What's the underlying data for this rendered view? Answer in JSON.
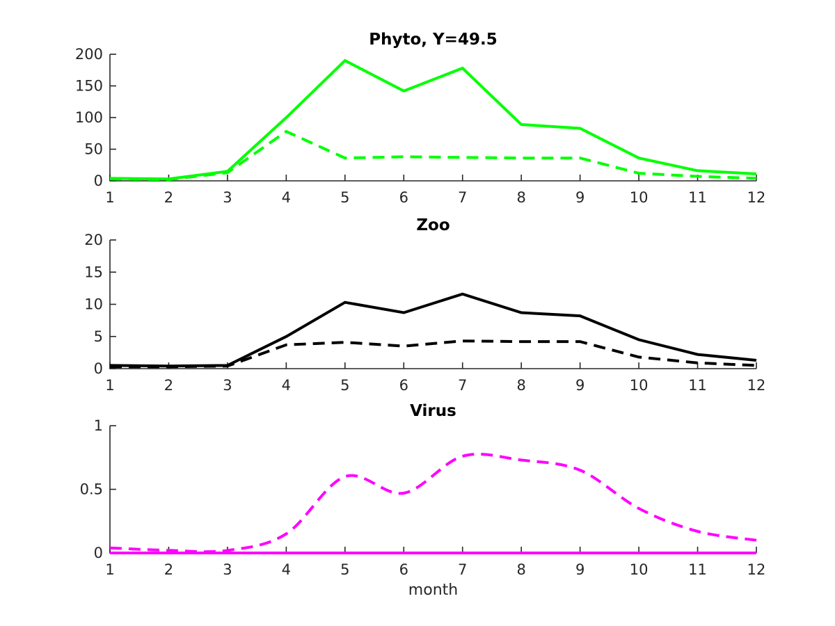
{
  "figure": {
    "background": "#ffffff",
    "axis_color": "#262626",
    "tick_label_color": "#262626"
  },
  "chart_data": [
    {
      "type": "line",
      "title": "Phyto, Y=49.5",
      "x": [
        1,
        2,
        3,
        4,
        5,
        6,
        7,
        8,
        9,
        10,
        11,
        12
      ],
      "xticks": [
        1,
        2,
        3,
        4,
        5,
        6,
        7,
        8,
        9,
        10,
        11,
        12
      ],
      "ylim": [
        0,
        200
      ],
      "yticks": [
        "0",
        "50",
        "100",
        "150",
        "200"
      ],
      "grid": false,
      "legend": "none",
      "series": [
        {
          "name": "solid-line",
          "style": "solid",
          "color": "#00ff00",
          "values": [
            4,
            3,
            15,
            100,
            190,
            142,
            178,
            89,
            83,
            36,
            16,
            11
          ]
        },
        {
          "name": "dashed-line",
          "style": "dashed",
          "color": "#00ff00",
          "values": [
            3,
            2,
            13,
            78,
            36,
            38,
            37,
            36,
            36,
            12,
            7,
            4
          ]
        }
      ]
    },
    {
      "type": "line",
      "title": "Zoo",
      "x": [
        1,
        2,
        3,
        4,
        5,
        6,
        7,
        8,
        9,
        10,
        11,
        12
      ],
      "xticks": [
        1,
        2,
        3,
        4,
        5,
        6,
        7,
        8,
        9,
        10,
        11,
        12
      ],
      "ylim": [
        0,
        20
      ],
      "yticks": [
        "0",
        "5",
        "10",
        "15",
        "20"
      ],
      "grid": false,
      "legend": "none",
      "series": [
        {
          "name": "solid-line",
          "style": "solid",
          "color": "#000000",
          "values": [
            0.5,
            0.4,
            0.5,
            5.0,
            10.3,
            8.7,
            11.6,
            8.7,
            8.2,
            4.5,
            2.2,
            1.3
          ]
        },
        {
          "name": "dashed-line",
          "style": "dashed",
          "color": "#000000",
          "values": [
            0.3,
            0.3,
            0.4,
            3.7,
            4.1,
            3.5,
            4.3,
            4.2,
            4.2,
            1.8,
            0.9,
            0.5
          ]
        }
      ]
    },
    {
      "type": "line",
      "title": "Virus",
      "xlabel": "month",
      "x": [
        1,
        2,
        3,
        4,
        5,
        6,
        7,
        8,
        9,
        10,
        11,
        12
      ],
      "xticks": [
        1,
        2,
        3,
        4,
        5,
        6,
        7,
        8,
        9,
        10,
        11,
        12
      ],
      "ylim": [
        0,
        1
      ],
      "yticks": [
        "0",
        "0.5",
        "1"
      ],
      "grid": false,
      "legend": "none",
      "series": [
        {
          "name": "solid-line",
          "style": "solid",
          "color": "#ff00ff",
          "values": [
            0,
            0,
            0,
            0,
            0,
            0,
            0,
            0,
            0,
            0,
            0,
            0
          ]
        },
        {
          "name": "dashed-line",
          "style": "dashed",
          "smooth": true,
          "color": "#ff00ff",
          "values": [
            0.04,
            0.02,
            0.02,
            0.15,
            0.6,
            0.47,
            0.76,
            0.73,
            0.65,
            0.35,
            0.17,
            0.1
          ]
        }
      ]
    }
  ]
}
